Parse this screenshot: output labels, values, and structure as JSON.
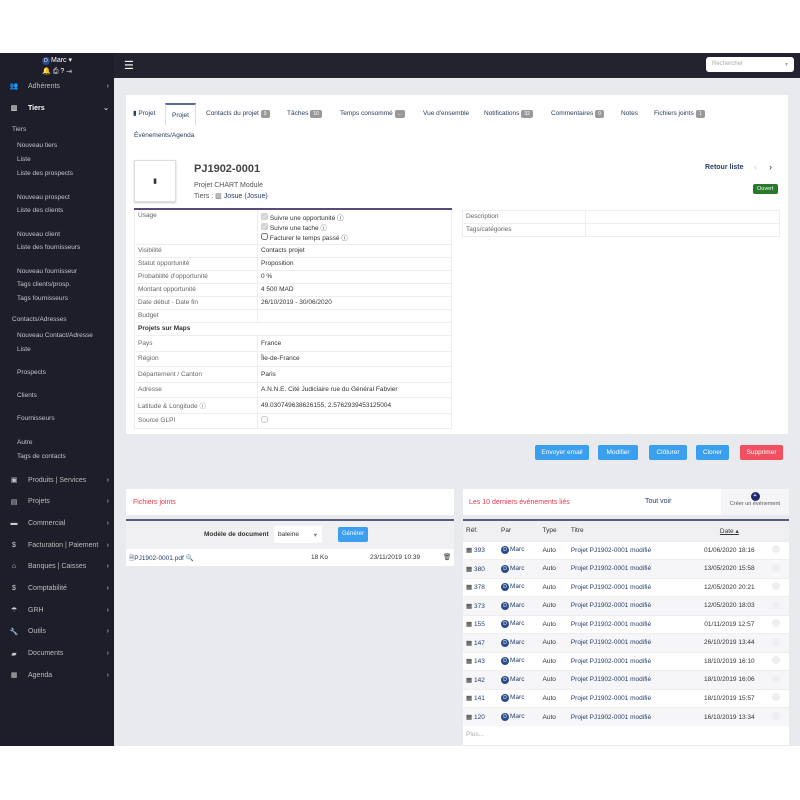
{
  "user": {
    "name": "Marc",
    "initial": "D"
  },
  "search": {
    "placeholder": "Rechercher"
  },
  "sidebar": {
    "top": [
      {
        "label": "Adhérents",
        "icon": "members-icon"
      },
      {
        "label": "Tiers",
        "icon": "building-icon"
      }
    ],
    "sub": [
      "Tiers",
      "Nouveau tiers",
      "Liste",
      "Liste des prospects",
      "Nouveau prospect",
      "Liste des clients",
      "Nouveau client",
      "Liste des fournisseurs",
      "Nouveau fournisseur",
      "Tags clients/prosp.",
      "Tags fournisseurs",
      "Contacts/Adresses",
      "Nouveau Contact/Adresse",
      "Liste",
      "Prospects",
      "Clients",
      "Fournisseurs",
      "Autre",
      "Tags de contacts"
    ],
    "bottom": [
      {
        "label": "Produits | Services",
        "icon": "product-icon"
      },
      {
        "label": "Projets",
        "icon": "clipboard-icon"
      },
      {
        "label": "Commercial",
        "icon": "briefcase-icon"
      },
      {
        "label": "Facturation | Paiement",
        "icon": "dollar-icon"
      },
      {
        "label": "Banques | Caisses",
        "icon": "bank-icon"
      },
      {
        "label": "Comptabilité",
        "icon": "dollar-icon"
      },
      {
        "label": "GRH",
        "icon": "umbrella-icon"
      },
      {
        "label": "Outils",
        "icon": "wrench-icon"
      },
      {
        "label": "Documents",
        "icon": "folder-icon"
      },
      {
        "label": "Agenda",
        "icon": "calendar-icon"
      }
    ]
  },
  "tabs": [
    {
      "label": "Projet"
    },
    {
      "label": "Projet"
    },
    {
      "label": "Contacts du projet",
      "badge": "9"
    },
    {
      "label": "Tâches",
      "badge": "10"
    },
    {
      "label": "Temps consommé",
      "badge": "..."
    },
    {
      "label": "Vue d'ensemble"
    },
    {
      "label": "Notifications",
      "badge": "32"
    },
    {
      "label": "Commentaires",
      "badge": "0"
    },
    {
      "label": "Notes"
    },
    {
      "label": "Fichiers joints",
      "badge": "1"
    },
    {
      "label": "Événements/Agenda"
    }
  ],
  "project": {
    "ref": "PJ1902-0001",
    "label": "Projet CHART Module",
    "tiers_label": "Tiers :",
    "tiers": "Josue (Josue)",
    "back": "Retour liste",
    "status": "Ouvert"
  },
  "fields": {
    "usage_label": "Usage",
    "usage": [
      "Suivre une opportunité",
      "Suivre une tache",
      "Facturer le temps passé"
    ],
    "rows": [
      {
        "l": "Visibilité",
        "v": "Contacts projet"
      },
      {
        "l": "Statut opportunité",
        "v": "Proposition"
      },
      {
        "l": "Probabilité d'opportunité",
        "v": "0 %"
      },
      {
        "l": "Montant opportunité",
        "v": "4 500 MAD"
      },
      {
        "l": "Date début - Date fin",
        "v": "26/10/2019 - 30/06/2020"
      },
      {
        "l": "Budget",
        "v": ""
      }
    ],
    "maps_title": "Projets sur Maps",
    "maps": [
      {
        "l": "Pays",
        "v": "France"
      },
      {
        "l": "Région",
        "v": "Île-de-France"
      },
      {
        "l": "Département / Canton",
        "v": "Paris"
      },
      {
        "l": "Adresse",
        "v": "A.N.N.E. Cité Judiciaire rue du Général Fabvier"
      },
      {
        "l": "Latitude & Longitude",
        "v": "49.030749638626155, 2.5762939453125004"
      },
      {
        "l": "Source GLPI",
        "v": ""
      }
    ],
    "right": [
      {
        "l": "Description"
      },
      {
        "l": "Tags/catégories"
      }
    ]
  },
  "actions": {
    "email": "Envoyer email",
    "edit": "Modifier",
    "close": "Clôturer",
    "clone": "Cloner",
    "delete": "Supprimer",
    "delete_color": "#f0505f",
    "primary_color": "#3b9ff0"
  },
  "files": {
    "title": "Fichiers joints",
    "model_label": "Modèle de document",
    "model": "baleine",
    "generate": "Générer",
    "file": {
      "name": "PJ1902-0001.pdf",
      "size": "18 Ko",
      "date": "23/11/2019 10:39"
    }
  },
  "events": {
    "title": "Les 10 derniers événements liés",
    "all": "Tout voir",
    "create": "Créer un événement",
    "headers": [
      "Réf.",
      "Par",
      "Type",
      "Titre",
      "Date"
    ],
    "more": "Plus...",
    "rows": [
      {
        "ref": "393",
        "by": "Marc",
        "type": "Auto",
        "title": "Projet PJ1902-0001 modifié",
        "date": "01/06/2020 18:16"
      },
      {
        "ref": "380",
        "by": "Marc",
        "type": "Auto",
        "title": "Projet PJ1902-0001 modifié",
        "date": "13/05/2020 15:58"
      },
      {
        "ref": "378",
        "by": "Marc",
        "type": "Auto",
        "title": "Projet PJ1902-0001 modifié",
        "date": "12/05/2020 20:21"
      },
      {
        "ref": "373",
        "by": "Marc",
        "type": "Auto",
        "title": "Projet PJ1902-0001 modifié",
        "date": "12/05/2020 18:03"
      },
      {
        "ref": "155",
        "by": "Marc",
        "type": "Auto",
        "title": "Projet PJ1902-0001 modifié",
        "date": "01/11/2019 12:57"
      },
      {
        "ref": "147",
        "by": "Marc",
        "type": "Auto",
        "title": "Projet PJ1902-0001 modifié",
        "date": "26/10/2019 13:44"
      },
      {
        "ref": "143",
        "by": "Marc",
        "type": "Auto",
        "title": "Projet PJ1902-0001 modifié",
        "date": "18/10/2019 16:10"
      },
      {
        "ref": "142",
        "by": "Marc",
        "type": "Auto",
        "title": "Projet PJ1902-0001 modifié",
        "date": "18/10/2019 16:06"
      },
      {
        "ref": "141",
        "by": "Marc",
        "type": "Auto",
        "title": "Projet PJ1902-0001 modifié",
        "date": "18/10/2019 15:57"
      },
      {
        "ref": "120",
        "by": "Marc",
        "type": "Auto",
        "title": "Projet PJ1902-0001 modifié",
        "date": "16/10/2019 13:34"
      }
    ]
  }
}
